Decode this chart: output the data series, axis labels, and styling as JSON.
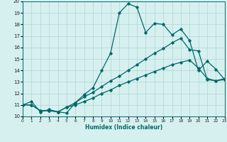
{
  "xlabel": "Humidex (Indice chaleur)",
  "background_color": "#d6f0f0",
  "grid_color": "#b0d4d4",
  "line_color": "#006868",
  "xlim": [
    0,
    23
  ],
  "ylim": [
    10,
    20
  ],
  "xticks": [
    0,
    1,
    2,
    3,
    4,
    5,
    6,
    7,
    8,
    9,
    10,
    11,
    12,
    13,
    14,
    15,
    16,
    17,
    18,
    19,
    20,
    21,
    22,
    23
  ],
  "yticks": [
    10,
    11,
    12,
    13,
    14,
    15,
    16,
    17,
    18,
    19,
    20
  ],
  "line1_x": [
    0,
    1,
    2,
    3,
    4,
    5,
    6,
    7,
    8,
    9,
    10,
    11,
    12,
    13,
    14,
    15,
    16,
    17,
    18,
    19,
    20,
    21,
    22,
    23
  ],
  "line1_y": [
    11.0,
    11.3,
    10.4,
    10.6,
    10.4,
    10.3,
    11.2,
    11.9,
    12.5,
    14.0,
    15.5,
    19.0,
    19.8,
    19.5,
    17.3,
    18.1,
    18.0,
    17.1,
    17.6,
    16.6,
    14.0,
    14.8,
    14.1,
    13.2
  ],
  "line2_x": [
    0,
    1,
    2,
    3,
    4,
    5,
    6,
    7,
    8,
    9,
    10,
    11,
    12,
    13,
    14,
    15,
    16,
    17,
    18,
    19,
    20,
    21,
    22,
    23
  ],
  "line2_y": [
    11.0,
    11.0,
    10.5,
    10.5,
    10.4,
    10.8,
    11.2,
    11.7,
    12.1,
    12.6,
    13.1,
    13.5,
    14.0,
    14.5,
    15.0,
    15.5,
    15.9,
    16.4,
    16.8,
    15.8,
    15.7,
    13.2,
    13.1,
    13.3
  ],
  "line3_x": [
    0,
    1,
    2,
    3,
    4,
    5,
    6,
    7,
    8,
    9,
    10,
    11,
    12,
    13,
    14,
    15,
    16,
    17,
    18,
    19,
    20,
    21,
    22,
    23
  ],
  "line3_y": [
    11.0,
    11.0,
    10.5,
    10.5,
    10.4,
    10.8,
    11.0,
    11.3,
    11.6,
    12.0,
    12.3,
    12.7,
    13.0,
    13.3,
    13.6,
    13.9,
    14.2,
    14.5,
    14.7,
    14.9,
    14.2,
    13.3,
    13.1,
    13.2
  ]
}
